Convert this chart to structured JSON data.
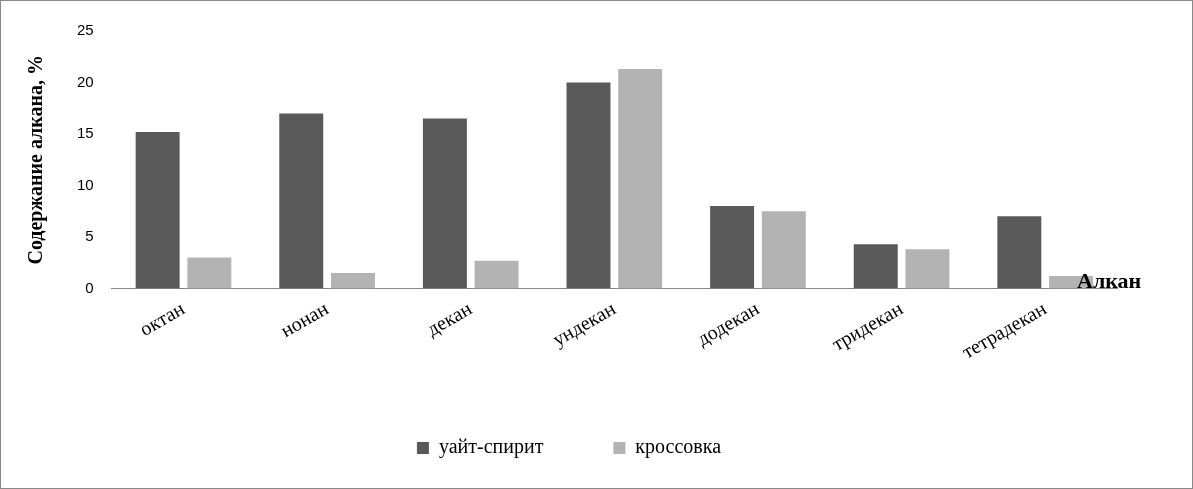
{
  "chart_data": {
    "type": "bar",
    "categories": [
      "октан",
      "нонан",
      "декан",
      "ундекан",
      "додекан",
      "тридекан",
      "тетрадекан"
    ],
    "series": [
      {
        "name": "уайт-спирит",
        "color": "#595959",
        "values": [
          15.2,
          17,
          16.5,
          20,
          8,
          4.3,
          7
        ]
      },
      {
        "name": "кроссовка",
        "color": "#b3b3b3",
        "values": [
          3,
          1.5,
          2.7,
          21.3,
          7.5,
          3.8,
          1.2
        ]
      }
    ],
    "ylabel": "Содержание алкана, %",
    "xlabel": "Алкан",
    "ylim": [
      0,
      25
    ],
    "yticks": [
      0,
      5,
      10,
      15,
      20,
      25
    ],
    "grid": false,
    "legend": "bottom"
  }
}
